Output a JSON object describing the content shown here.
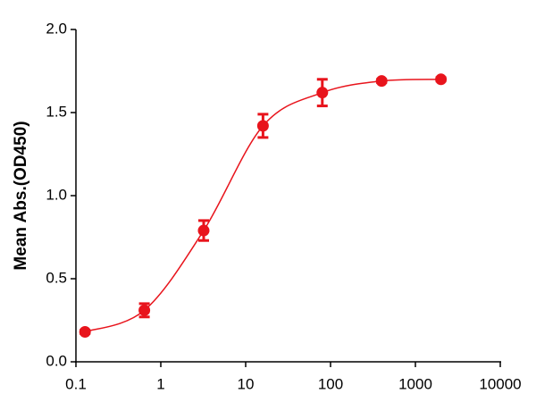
{
  "chart_data": {
    "type": "scatter",
    "y_label": "Mean Abs.(OD450)",
    "x": [
      0.128,
      0.64,
      3.2,
      16,
      80,
      400,
      2000
    ],
    "values": [
      0.18,
      0.31,
      0.79,
      1.42,
      1.62,
      1.69,
      1.7
    ],
    "errors": [
      0.01,
      0.04,
      0.06,
      0.07,
      0.08,
      0.01,
      0.01
    ],
    "color": "#e8141c",
    "x_log": true,
    "fit_curve": true,
    "xlim": [
      0.1,
      10000
    ],
    "xticks": [
      0.1,
      1,
      10,
      100,
      1000,
      10000
    ],
    "ylim": [
      0,
      2
    ],
    "yticks": [
      {
        "value": 0,
        "label": "0.0"
      },
      {
        "value": 0.5,
        "label": "0.5"
      },
      {
        "value": 1,
        "label": "1.0"
      },
      {
        "value": 1.5,
        "label": "1.5"
      },
      {
        "value": 2,
        "label": "2.0"
      }
    ]
  }
}
